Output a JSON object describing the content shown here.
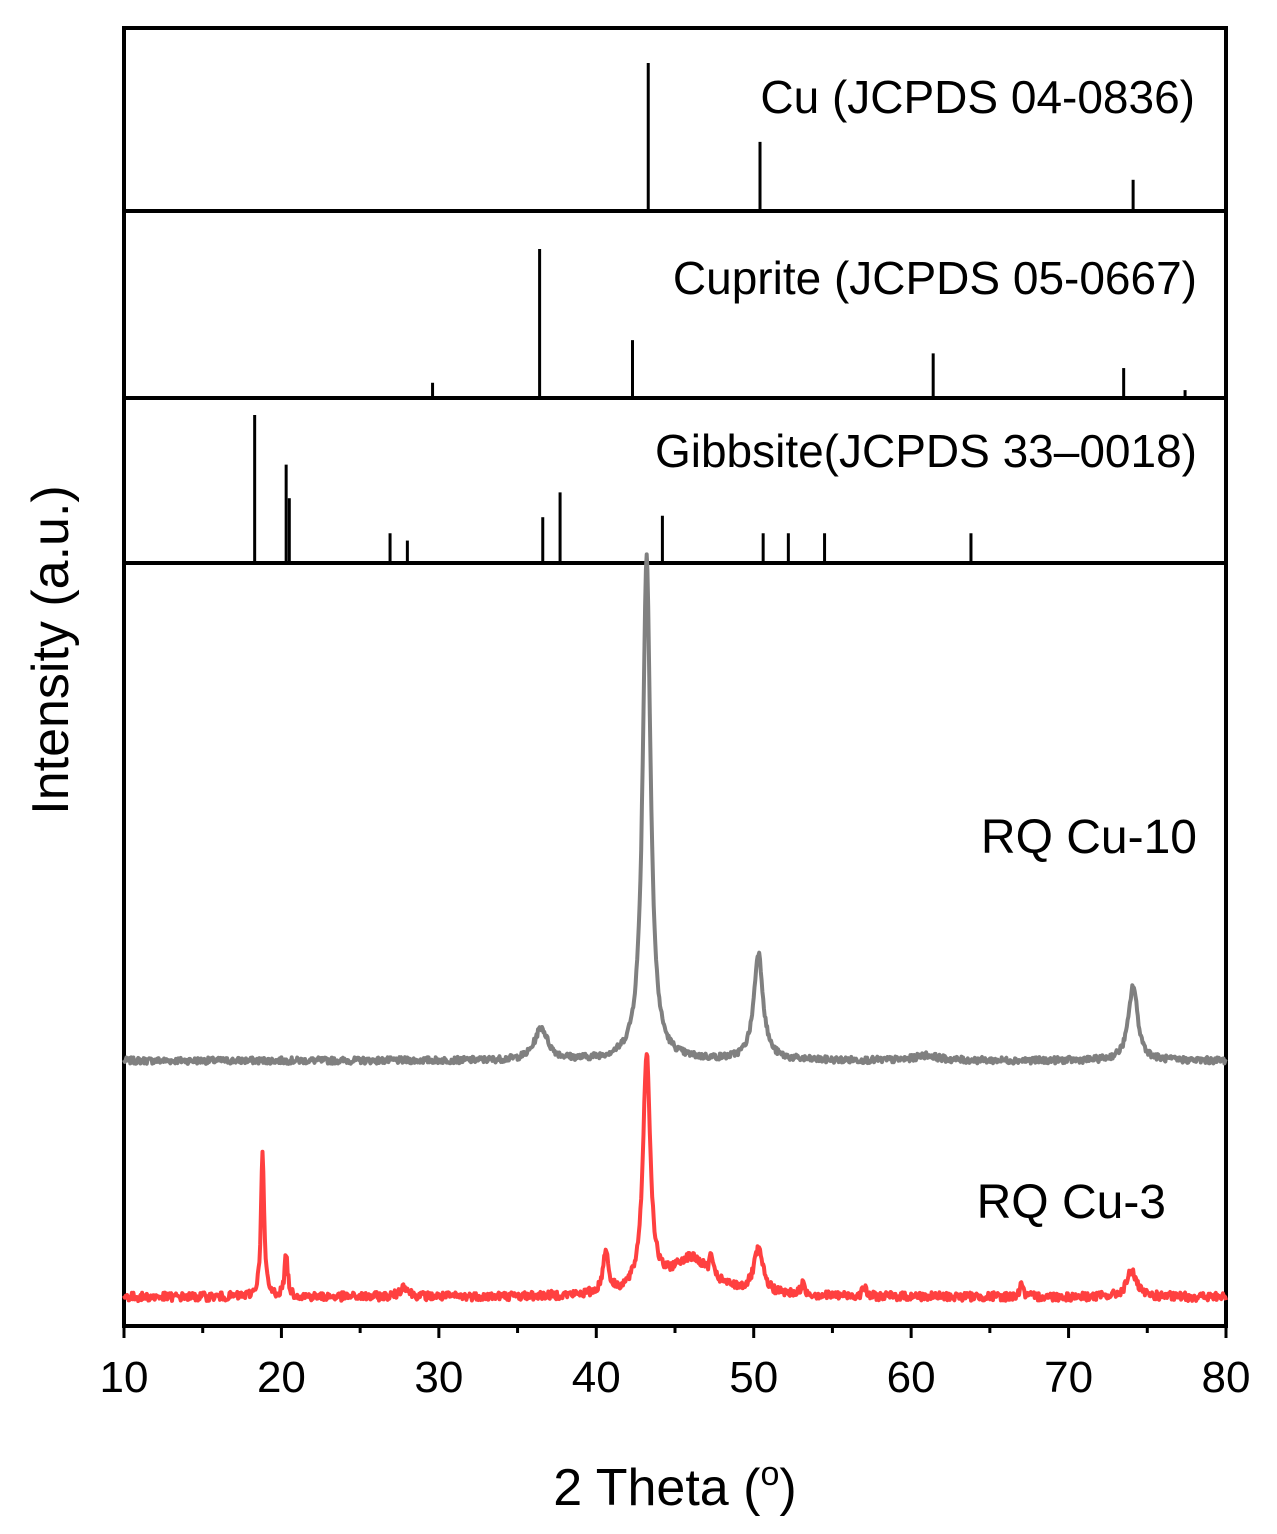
{
  "chart_data": {
    "type": "line",
    "xlabel_main": "2 Theta (",
    "xlabel_sup": "o",
    "xlabel_close": ")",
    "ylabel": "Intensity (a.u.)",
    "xlim": [
      10,
      80
    ],
    "x_ticks": [
      "10",
      "20",
      "30",
      "40",
      "50",
      "60",
      "70",
      "80"
    ],
    "x_tick_values": [
      10,
      20,
      30,
      40,
      50,
      60,
      70,
      80
    ],
    "reference_panels": [
      {
        "label": "Cu (JCPDS 04-0836)",
        "peaks": [
          [
            43.3,
            1.0
          ],
          [
            50.4,
            0.46
          ],
          [
            74.1,
            0.2
          ]
        ]
      },
      {
        "label": "Cuprite (JCPDS 05-0667)",
        "peaks": [
          [
            29.6,
            0.09
          ],
          [
            36.4,
            1.0
          ],
          [
            42.3,
            0.38
          ],
          [
            61.4,
            0.29
          ],
          [
            73.5,
            0.19
          ],
          [
            77.4,
            0.04
          ]
        ]
      },
      {
        "label": "Gibbsite(JCPDS 33–0018)",
        "peaks": [
          [
            18.3,
            1.0
          ],
          [
            20.3,
            0.66
          ],
          [
            20.5,
            0.43
          ],
          [
            26.9,
            0.19
          ],
          [
            28.0,
            0.14
          ],
          [
            36.6,
            0.3
          ],
          [
            37.7,
            0.47
          ],
          [
            44.2,
            0.31
          ],
          [
            50.6,
            0.19
          ],
          [
            52.2,
            0.19
          ],
          [
            54.5,
            0.19
          ],
          [
            63.8,
            0.19
          ]
        ]
      }
    ],
    "series": [
      {
        "name": "RQ Cu-10",
        "color": "#808080",
        "baseline": 0.44,
        "noise": 0.006,
        "peaks": [
          [
            36.5,
            0.5,
            0.06
          ],
          [
            43.2,
            0.3,
            0.94
          ],
          [
            50.3,
            0.35,
            0.2
          ],
          [
            74.1,
            0.35,
            0.14
          ],
          [
            61.0,
            0.8,
            0.01
          ]
        ]
      },
      {
        "name": "RQ Cu-3",
        "color": "#ff4040",
        "baseline": 0.0,
        "noise": 0.008,
        "peaks": [
          [
            18.8,
            0.12,
            0.27
          ],
          [
            20.3,
            0.12,
            0.08
          ],
          [
            27.8,
            0.3,
            0.02
          ],
          [
            40.6,
            0.2,
            0.08
          ],
          [
            43.2,
            0.28,
            0.44
          ],
          [
            47.3,
            0.1,
            0.04
          ],
          [
            50.3,
            0.35,
            0.08
          ],
          [
            53.1,
            0.15,
            0.02
          ],
          [
            57.0,
            0.12,
            0.02
          ],
          [
            67.0,
            0.1,
            0.03
          ],
          [
            74.0,
            0.35,
            0.05
          ],
          [
            46.0,
            1.6,
            0.07
          ]
        ]
      }
    ],
    "grid": false,
    "legend": "none"
  }
}
